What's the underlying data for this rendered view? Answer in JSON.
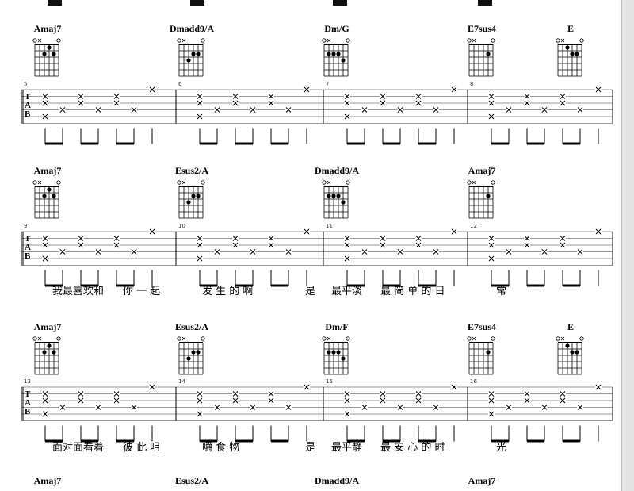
{
  "tab_clef": [
    "T",
    "A",
    "B"
  ],
  "systems": [
    {
      "chords": [
        "Amaj7",
        "Dmadd9/A",
        "Dm/G",
        "E7sus4",
        "E"
      ],
      "measures": [
        5,
        6,
        7,
        8
      ],
      "lyrics": []
    },
    {
      "chords": [
        "Amaj7",
        "Esus2/A",
        "Dmadd9/A",
        "Amaj7"
      ],
      "measures": [
        9,
        10,
        11,
        12
      ],
      "lyrics": [
        "我最喜欢和",
        "你 一 起",
        "发 生 的 啊",
        "是",
        "最平淡",
        "最 简 单 的 日",
        "常"
      ]
    },
    {
      "chords": [
        "Amaj7",
        "Esus2/A",
        "Dm/F",
        "E7sus4",
        "E"
      ],
      "measures": [
        13,
        14,
        15,
        16
      ],
      "lyrics": [
        "面对面看着",
        "彼 此 咀",
        "嚼 食 物",
        "是",
        "最平静",
        "最 安 心 的 时",
        "光"
      ]
    },
    {
      "chords": [
        "Amaj7",
        "Esus2/A",
        "Dmadd9/A",
        "Amaj7"
      ],
      "measures": [],
      "lyrics": []
    }
  ]
}
